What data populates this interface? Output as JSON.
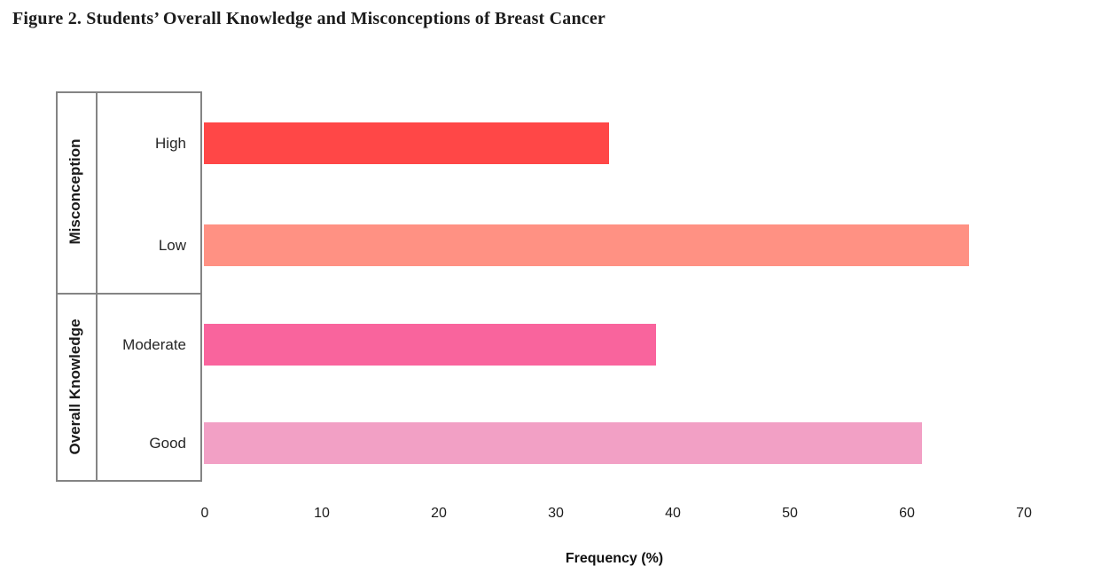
{
  "figure": {
    "title": "Figure 2. Students’ Overall Knowledge and Misconceptions of Breast Cancer"
  },
  "chart_data": {
    "type": "bar",
    "orientation": "horizontal",
    "title": "Figure 2. Students’ Overall Knowledge and Misconceptions of Breast Cancer",
    "xlabel": "Frequency (%)",
    "xlim": [
      0,
      70
    ],
    "xticks": [
      0,
      10,
      20,
      30,
      40,
      50,
      60,
      70
    ],
    "grid": false,
    "legend": false,
    "groups": [
      {
        "label": "Misconception",
        "bars": [
          {
            "category": "High",
            "value": 34.6,
            "color": "#ff4747"
          },
          {
            "category": "Low",
            "value": 65.4,
            "color": "#ff9183"
          }
        ]
      },
      {
        "label": "Overall Knowledge",
        "bars": [
          {
            "category": "Moderate",
            "value": 38.6,
            "color": "#f9649d"
          },
          {
            "category": "Good",
            "value": 61.4,
            "color": "#f2a0c5"
          }
        ]
      }
    ],
    "colors": {
      "table_border": "#848484",
      "text": "#1c1c1c"
    }
  }
}
